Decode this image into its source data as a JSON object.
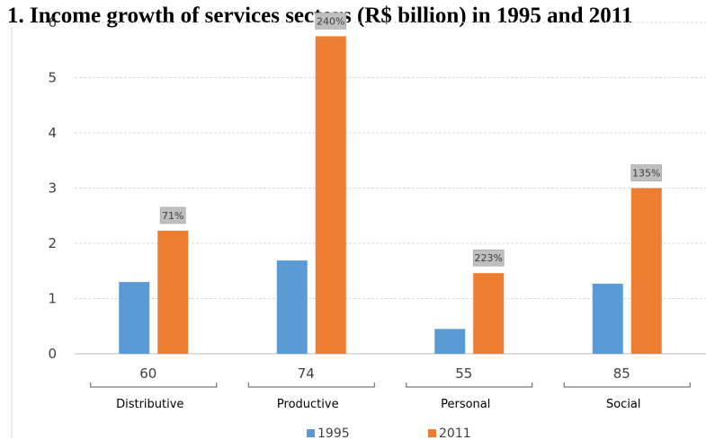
{
  "chart_data": {
    "type": "bar",
    "title": "1. Income growth of services sectors (R$ billion) in 1995 and 2011",
    "categories": [
      "Distributive",
      "Productive",
      "Personal",
      "Social"
    ],
    "category_counts": [
      "60",
      "74",
      "55",
      "85"
    ],
    "series": [
      {
        "name": "1995",
        "color": "#5b9bd5",
        "values": [
          1.3,
          1.69,
          0.45,
          1.27
        ]
      },
      {
        "name": "2011",
        "color": "#ed7d31",
        "values": [
          2.23,
          5.75,
          1.46,
          3.0
        ]
      }
    ],
    "growth_labels": [
      "71%",
      "240%",
      "223%",
      "135%"
    ],
    "yticks": [
      "0",
      "1",
      "2",
      "3",
      "4",
      "5",
      "6"
    ],
    "ylim": [
      0,
      6
    ],
    "grid": true,
    "legend_position": "bottom"
  }
}
